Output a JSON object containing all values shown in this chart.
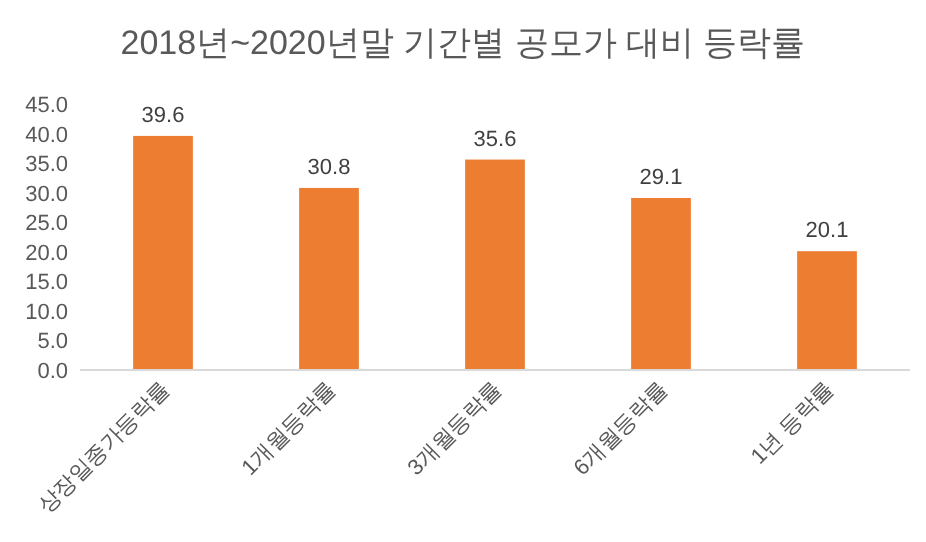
{
  "chart_data": {
    "type": "bar",
    "title": "2018년~2020년말 기간별 공모가 대비 등락률",
    "categories": [
      "상장일종가등락률",
      "1개월등락률",
      "3개월등락률",
      "6개월등락률",
      "1년 등락률"
    ],
    "values": [
      39.6,
      30.8,
      35.6,
      29.1,
      20.1
    ],
    "color": "#ed7d31",
    "data_labels": true,
    "ylim": [
      0,
      45
    ],
    "yticks": [
      {
        "value": 0,
        "label": "0.0"
      },
      {
        "value": 5,
        "label": "5.0"
      },
      {
        "value": 10,
        "label": "10.0"
      },
      {
        "value": 15,
        "label": "15.0"
      },
      {
        "value": 20,
        "label": "20.0"
      },
      {
        "value": 25,
        "label": "25.0"
      },
      {
        "value": 30,
        "label": "30.0"
      },
      {
        "value": 35,
        "label": "35.0"
      },
      {
        "value": 40,
        "label": "40.0"
      },
      {
        "value": 45,
        "label": "45.0"
      }
    ]
  }
}
